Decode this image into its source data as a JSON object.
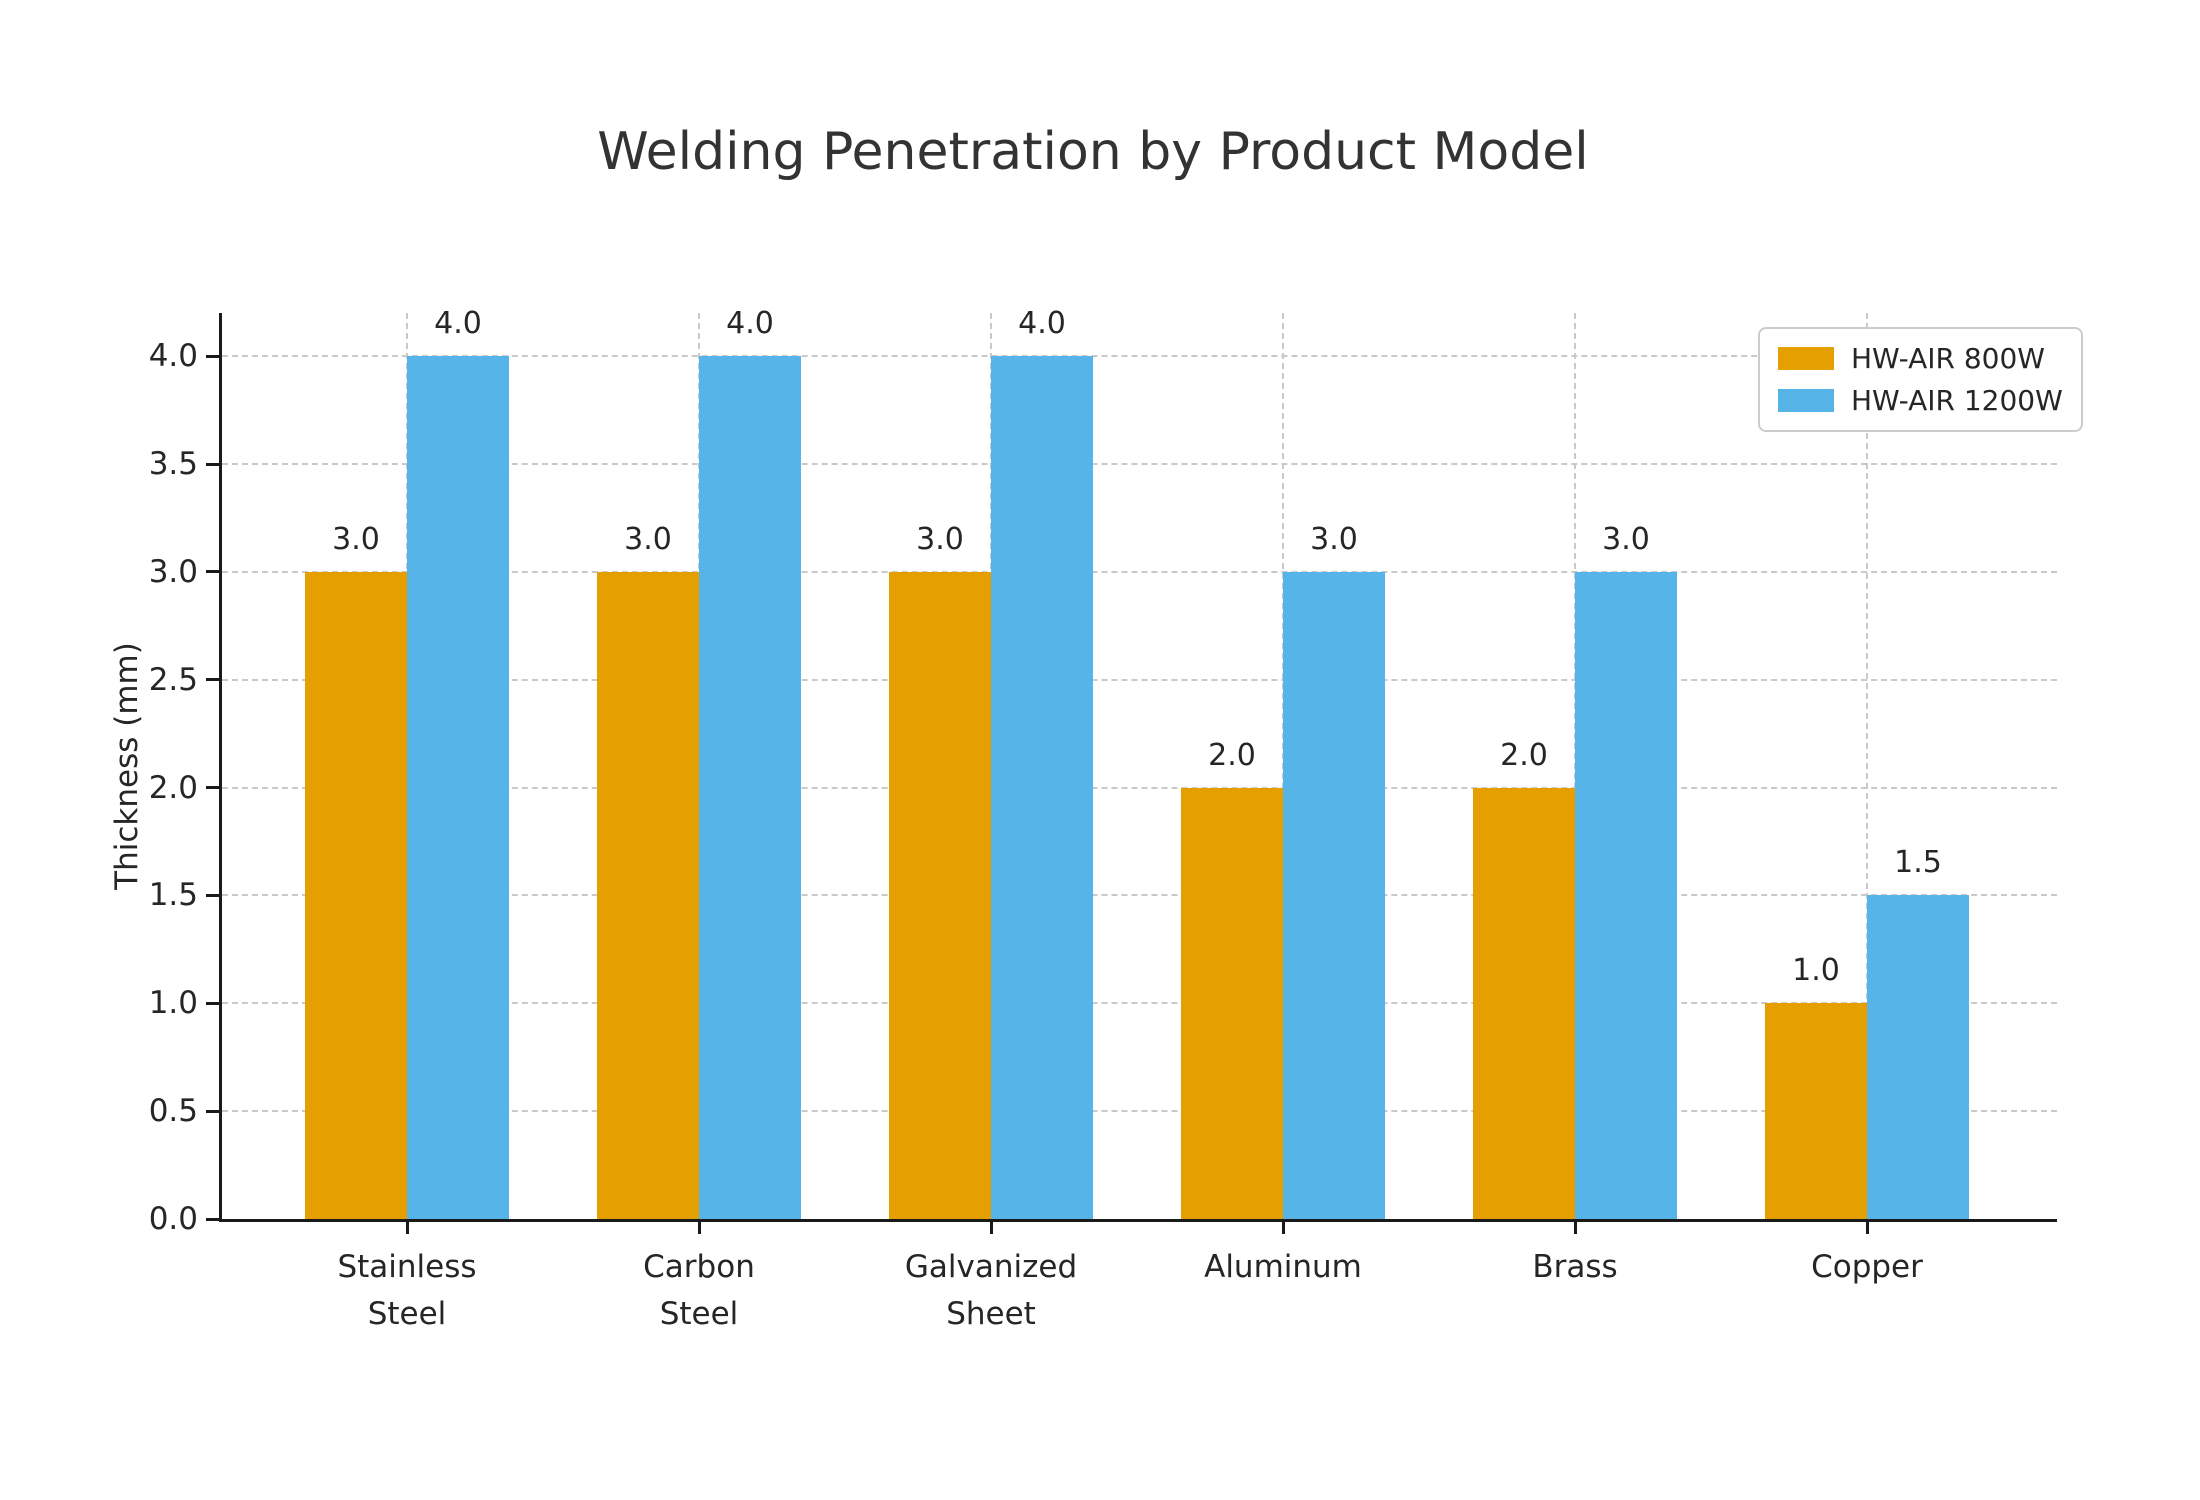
{
  "chart_data": {
    "type": "bar",
    "title": "Welding Penetration by Product Model",
    "xlabel": "",
    "ylabel": "Thickness (mm)",
    "categories": [
      "Stainless\nSteel",
      "Carbon\nSteel",
      "Galvanized\nSheet",
      "Aluminum",
      "Brass",
      "Copper"
    ],
    "series": [
      {
        "name": "HW-AIR 800W",
        "color": "#E69F00",
        "values": [
          3.0,
          3.0,
          3.0,
          2.0,
          2.0,
          1.0
        ]
      },
      {
        "name": "HW-AIR 1200W",
        "color": "#56B4E9",
        "values": [
          4.0,
          4.0,
          4.0,
          3.0,
          3.0,
          1.5
        ]
      }
    ],
    "bar_value_labels": [
      [
        "3.0",
        "3.0",
        "3.0",
        "2.0",
        "2.0",
        "1.0"
      ],
      [
        "4.0",
        "4.0",
        "4.0",
        "3.0",
        "3.0",
        "1.5"
      ]
    ],
    "ylim": [
      0,
      4.2
    ],
    "yticks": [
      "0.0",
      "0.5",
      "1.0",
      "1.5",
      "2.0",
      "2.5",
      "3.0",
      "3.5",
      "4.0"
    ],
    "grid": "horizontal and vertical, dashed",
    "legend_position": "upper right",
    "colors": {
      "series_800w": "#E69F00",
      "series_1200w": "#56B4E9",
      "grid": "#c9c9c9",
      "spine": "#1a1a1a",
      "text": "#262626",
      "title": "#333333",
      "background": "#ffffff",
      "legend_border": "#cccccc"
    }
  }
}
